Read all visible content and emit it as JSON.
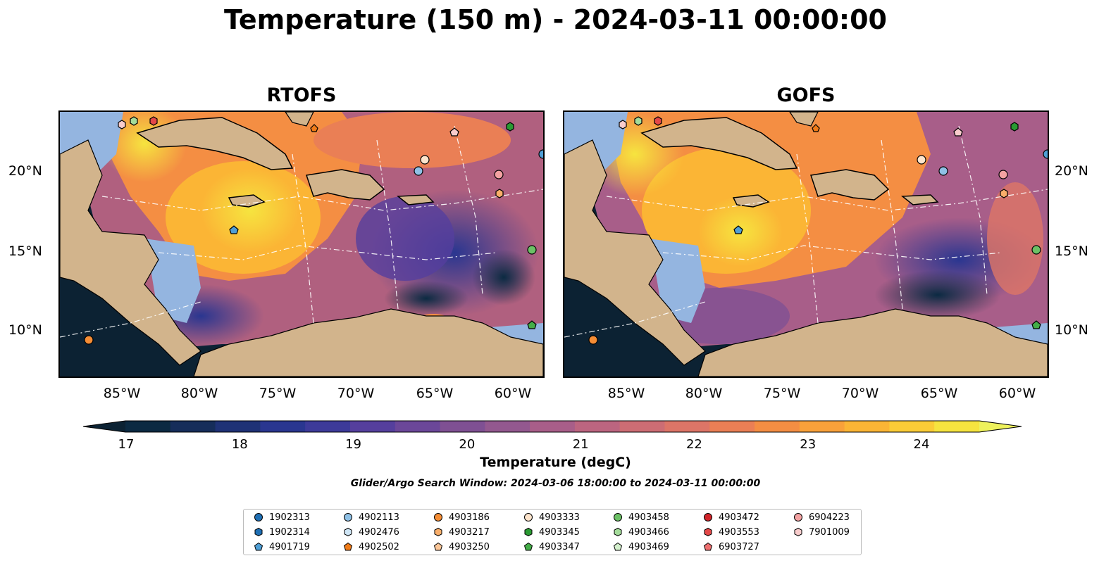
{
  "title": "Temperature (150 m) - 2024-03-11 00:00:00",
  "panels": [
    {
      "title": "RTOFS"
    },
    {
      "title": "GOFS"
    }
  ],
  "lon_ticks": [
    "85°W",
    "80°W",
    "75°W",
    "70°W",
    "65°W",
    "60°W"
  ],
  "lat_ticks": [
    "20°N",
    "15°N",
    "10°N"
  ],
  "colorbar": {
    "label": "Temperature (degC)",
    "ticks": [
      "17",
      "18",
      "19",
      "20",
      "21",
      "22",
      "23",
      "24"
    ],
    "colors": [
      "#0b2a42",
      "#162d5a",
      "#1f3276",
      "#2a3690",
      "#3d3a99",
      "#553f9d",
      "#6b4799",
      "#7f5093",
      "#93588f",
      "#a85e89",
      "#bc6580",
      "#cd6d74",
      "#dd7567",
      "#ea7f55",
      "#f48e43",
      "#f9a13a",
      "#fbb535",
      "#fbcc37",
      "#f6e43f"
    ],
    "extend_low": "#0b2233",
    "extend_high": "#eef25c"
  },
  "search_window": "Glider/Argo Search Window: 2024-03-06 18:00:00 to 2024-03-11 00:00:00",
  "legend": [
    {
      "id": "1902313",
      "marker": "circle",
      "color": "#1f6fb4"
    },
    {
      "id": "1902314",
      "marker": "hexagon",
      "color": "#1f6fb4"
    },
    {
      "id": "4901719",
      "marker": "pentagon",
      "color": "#4f9fd6"
    },
    {
      "id": "4902113",
      "marker": "circle",
      "color": "#8fc1e6"
    },
    {
      "id": "4902476",
      "marker": "hexagon",
      "color": "#cfe6f6"
    },
    {
      "id": "4902502",
      "marker": "pentagon",
      "color": "#f07b18"
    },
    {
      "id": "4903186",
      "marker": "circle",
      "color": "#f58d35"
    },
    {
      "id": "4903217",
      "marker": "hexagon",
      "color": "#f9ae6a"
    },
    {
      "id": "4903250",
      "marker": "pentagon",
      "color": "#fbc698"
    },
    {
      "id": "4903333",
      "marker": "circle",
      "color": "#fde4cc"
    },
    {
      "id": "4903345",
      "marker": "hexagon",
      "color": "#2a9a32"
    },
    {
      "id": "4903347",
      "marker": "pentagon",
      "color": "#44ad48"
    },
    {
      "id": "4903458",
      "marker": "circle",
      "color": "#6cc166"
    },
    {
      "id": "4903466",
      "marker": "hexagon",
      "color": "#a4dc9a"
    },
    {
      "id": "4903469",
      "marker": "pentagon",
      "color": "#d4f0cd"
    },
    {
      "id": "4903472",
      "marker": "circle",
      "color": "#d2252a"
    },
    {
      "id": "4903553",
      "marker": "hexagon",
      "color": "#e44848"
    },
    {
      "id": "6903727",
      "marker": "pentagon",
      "color": "#ef7070"
    },
    {
      "id": "6904223",
      "marker": "circle",
      "color": "#f3a2a2"
    },
    {
      "id": "7901009",
      "marker": "hexagon",
      "color": "#f9cccc"
    }
  ]
}
